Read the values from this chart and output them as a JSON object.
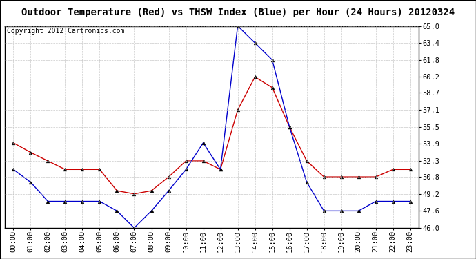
{
  "title": "Outdoor Temperature (Red) vs THSW Index (Blue) per Hour (24 Hours) 20120324",
  "copyright": "Copyright 2012 Cartronics.com",
  "hours": [
    "00:00",
    "01:00",
    "02:00",
    "03:00",
    "04:00",
    "05:00",
    "06:00",
    "07:00",
    "08:00",
    "09:00",
    "10:00",
    "11:00",
    "12:00",
    "13:00",
    "14:00",
    "15:00",
    "16:00",
    "17:00",
    "18:00",
    "19:00",
    "20:00",
    "21:00",
    "22:00",
    "23:00"
  ],
  "red_temp": [
    54.0,
    53.1,
    52.3,
    51.5,
    51.5,
    51.5,
    49.5,
    49.2,
    49.5,
    50.8,
    52.3,
    52.3,
    51.5,
    57.1,
    60.2,
    59.2,
    55.5,
    52.3,
    50.8,
    50.8,
    50.8,
    50.8,
    51.5,
    51.5
  ],
  "blue_thsw": [
    51.5,
    50.3,
    48.5,
    48.5,
    48.5,
    48.5,
    47.6,
    46.0,
    47.6,
    49.5,
    51.5,
    54.0,
    51.5,
    65.0,
    63.4,
    61.8,
    55.5,
    50.3,
    47.6,
    47.6,
    47.6,
    48.5,
    48.5,
    48.5
  ],
  "ylim_min": 46.0,
  "ylim_max": 65.0,
  "yticks": [
    46.0,
    47.6,
    49.2,
    50.8,
    52.3,
    53.9,
    55.5,
    57.1,
    58.7,
    60.2,
    61.8,
    63.4,
    65.0
  ],
  "red_color": "#cc0000",
  "blue_color": "#0000cc",
  "bg_color": "#ffffff",
  "grid_color": "#bbbbbb",
  "title_fontsize": 10,
  "tick_fontsize": 7.5,
  "copyright_fontsize": 7,
  "marker": "^",
  "markersize": 3.5
}
